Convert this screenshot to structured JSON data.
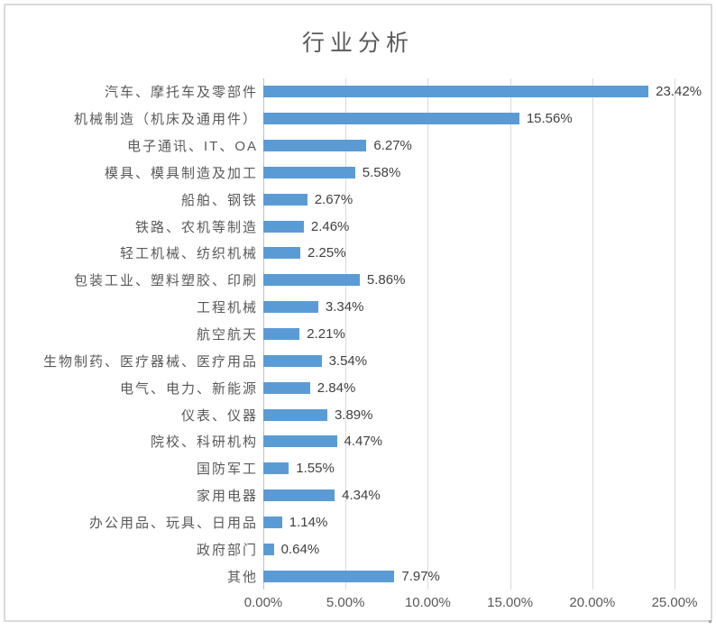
{
  "chart_data": {
    "type": "bar",
    "orientation": "horizontal",
    "title": "行业分析",
    "categories": [
      "汽车、摩托车及零部件",
      "机械制造（机床及通用件）",
      "电子通讯、IT、OA",
      "模具、模具制造及加工",
      "船舶、钢铁",
      "铁路、农机等制造",
      "轻工机械、纺织机械",
      "包装工业、塑料塑胶、印刷",
      "工程机械",
      "航空航天",
      "生物制药、医疗器械、医疗用品",
      "电气、电力、新能源",
      "仪表、仪器",
      "院校、科研机构",
      "国防军工",
      "家用电器",
      "办公用品、玩具、日用品",
      "政府部门",
      "其他"
    ],
    "values": [
      23.42,
      15.56,
      6.27,
      5.58,
      2.67,
      2.46,
      2.25,
      5.86,
      3.34,
      2.21,
      3.54,
      2.84,
      3.89,
      4.47,
      1.55,
      4.34,
      1.14,
      0.64,
      7.97
    ],
    "data_labels": [
      "23.42%",
      "15.56%",
      "6.27%",
      "5.58%",
      "2.67%",
      "2.46%",
      "2.25%",
      "5.86%",
      "3.34%",
      "2.21%",
      "3.54%",
      "2.84%",
      "3.89%",
      "4.47%",
      "1.55%",
      "4.34%",
      "1.14%",
      "0.64%",
      "7.97%"
    ],
    "x_ticks": [
      "0.00%",
      "5.00%",
      "10.00%",
      "15.00%",
      "20.00%",
      "25.00%"
    ],
    "x_tick_values": [
      0,
      5,
      10,
      15,
      20,
      25
    ],
    "xlim": [
      0,
      25
    ],
    "xlabel": "",
    "ylabel": "",
    "grid": "vertical",
    "legend": "none",
    "colors": {
      "bar": "#5B9BD5",
      "gridline": "#D9D9D9",
      "axis_line": "#C2C2C2",
      "title_text": "#595959",
      "category_text": "#595959",
      "value_text": "#404040",
      "frame_border": "#D9D9D9",
      "background": "#FFFFFF"
    }
  }
}
